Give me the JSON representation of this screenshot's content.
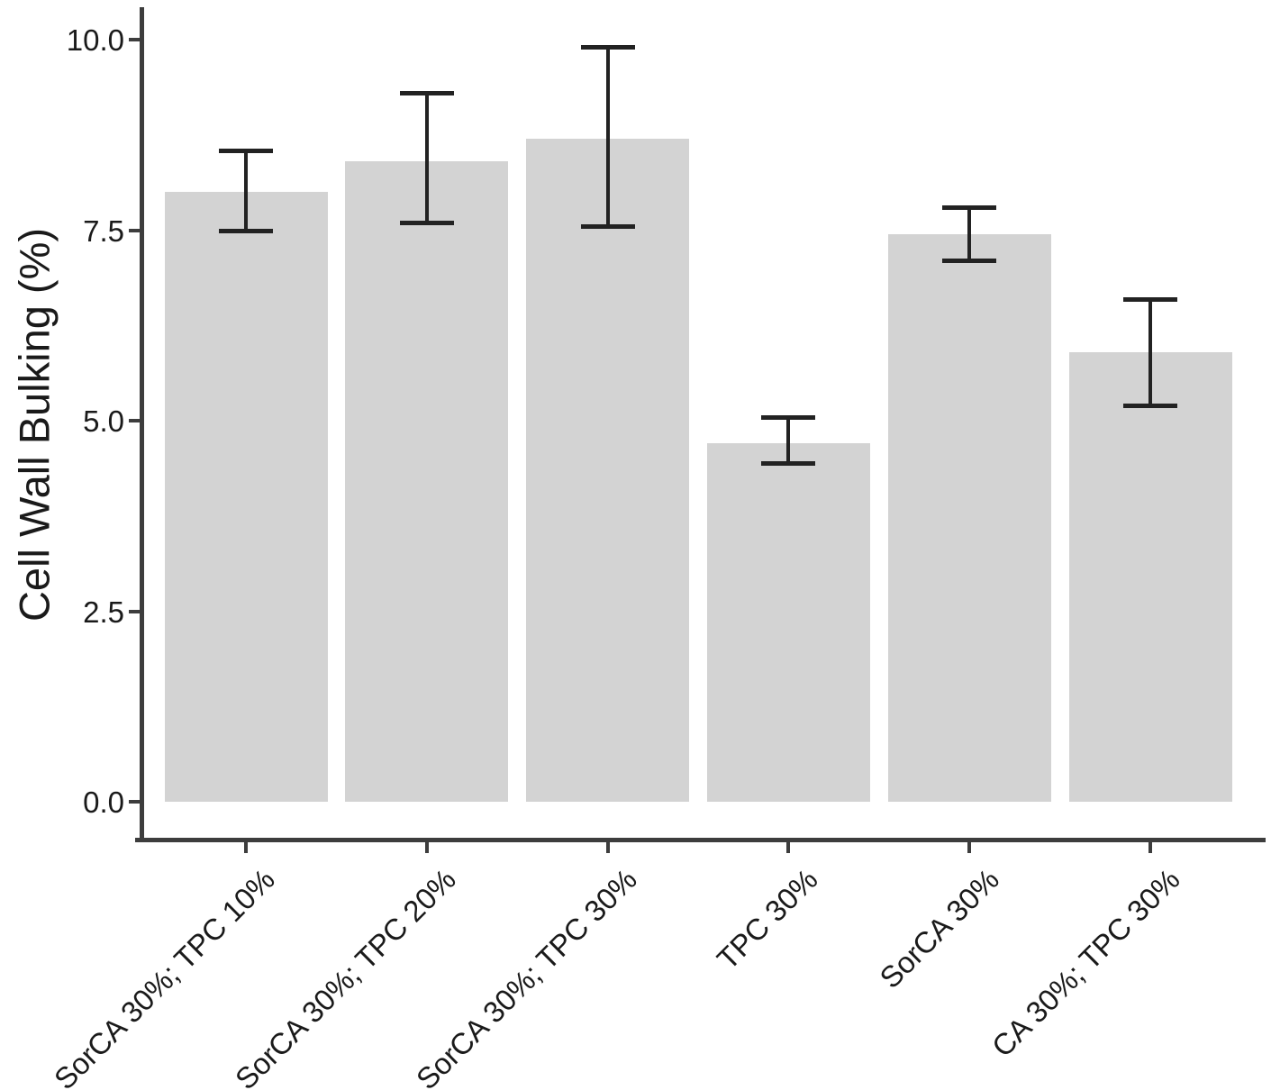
{
  "chart_data": {
    "type": "bar",
    "title": "",
    "xlabel": "",
    "ylabel": "Cell Wall Bulking (%)",
    "categories": [
      "SorCA 30%; TPC 10%",
      "SorCA 30%; TPC 20%",
      "SorCA 30%; TPC 30%",
      "TPC 30%",
      "SorCA 30%",
      "CA 30%; TPC 30%"
    ],
    "values": [
      8.0,
      8.4,
      8.7,
      4.7,
      7.45,
      5.9
    ],
    "error_low": [
      7.5,
      7.6,
      7.55,
      4.45,
      7.1,
      5.2
    ],
    "error_high": [
      8.55,
      9.3,
      9.9,
      5.05,
      7.8,
      6.6
    ],
    "y_tick_labels": [
      "0.0",
      "2.5",
      "5.0",
      "7.5",
      "10.0"
    ],
    "y_tick_values": [
      0,
      2.5,
      5,
      7.5,
      10
    ],
    "ylim": [
      0,
      10
    ],
    "grid": false,
    "legend_position": "none",
    "x_label_rotation_deg": 45,
    "bar_fill_color": "#d3d3d3",
    "error_bar_color": "#222222",
    "axis_color": "#3d3d3d",
    "text_color": "#1a1a1a"
  }
}
